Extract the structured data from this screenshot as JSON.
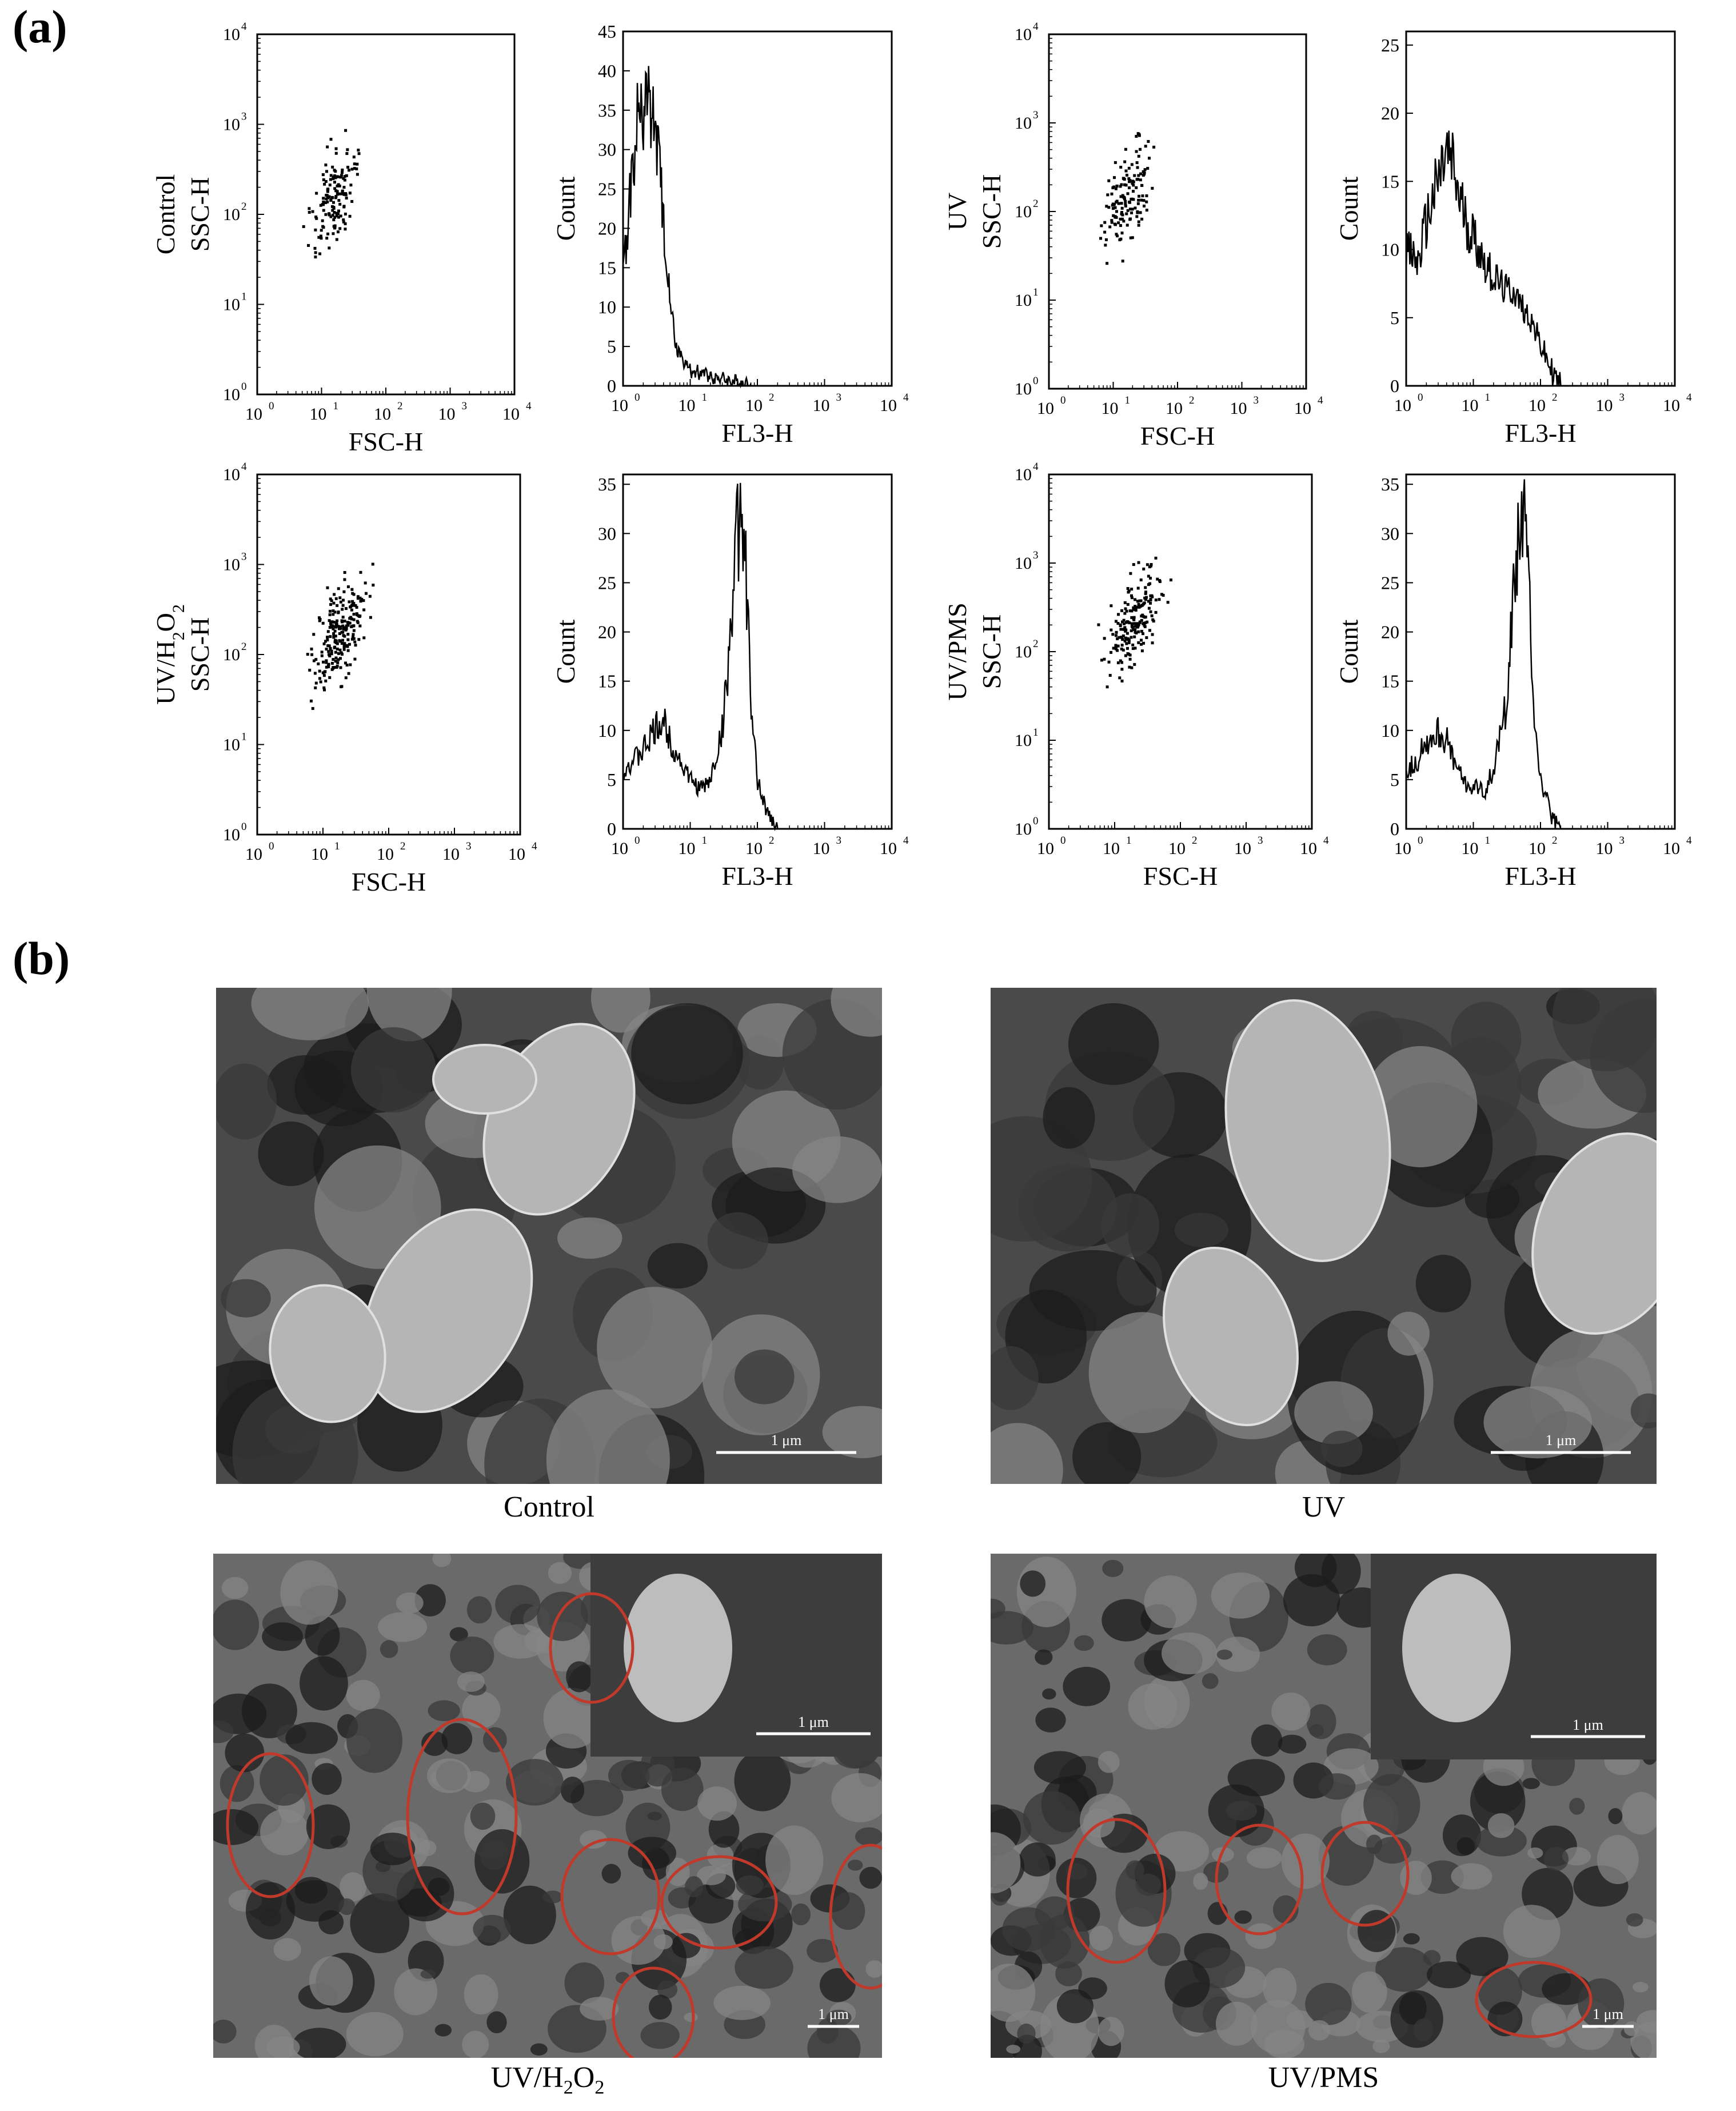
{
  "panel_a_label": "(a)",
  "panel_b_label": "(b)",
  "chart_data": [
    {
      "type": "scatter",
      "row_label": "Control",
      "xlabel": "FSC-H",
      "ylabel": "SSC-H",
      "xlog": true,
      "ylog": true,
      "xlim": [
        1,
        10000
      ],
      "ylim": [
        1,
        10000
      ],
      "tick_labels": [
        "10",
        "10",
        "10",
        "10",
        "10"
      ],
      "tick_exps": [
        "0",
        "1",
        "2",
        "3",
        "4"
      ],
      "cloud": {
        "n": 150,
        "x_center": 16,
        "x_spread": 0.25,
        "y_center": 150,
        "y_spread": 0.35,
        "slope": 0.8
      }
    },
    {
      "type": "line",
      "row_label": "",
      "xlabel": "FL3-H",
      "ylabel": "Count",
      "xlog": true,
      "xlim": [
        1,
        10000
      ],
      "ylim": [
        0,
        45
      ],
      "y_ticks": [
        0,
        5,
        10,
        15,
        20,
        25,
        30,
        35,
        40,
        45
      ],
      "tick_labels": [
        "10",
        "10",
        "10",
        "10",
        "10"
      ],
      "tick_exps": [
        "0",
        "1",
        "2",
        "3",
        "4"
      ],
      "x": [
        1.0,
        1.3,
        1.6,
        2.0,
        2.5,
        3.0,
        3.5,
        4.0,
        5.0,
        6.0,
        8.0,
        10,
        15,
        25,
        40,
        60,
        80
      ],
      "y": [
        14,
        25,
        33,
        35,
        36,
        32,
        27,
        20,
        12,
        5,
        3,
        2,
        1.5,
        1,
        0.5,
        0.3,
        0
      ]
    },
    {
      "type": "scatter",
      "row_label": "UV",
      "xlabel": "FSC-H",
      "ylabel": "SSC-H",
      "xlog": true,
      "ylog": true,
      "xlim": [
        1,
        10000
      ],
      "ylim": [
        1,
        10000
      ],
      "tick_labels": [
        "10",
        "10",
        "10",
        "10",
        "10"
      ],
      "tick_exps": [
        "0",
        "1",
        "2",
        "3",
        "4"
      ],
      "cloud": {
        "n": 150,
        "x_center": 18,
        "x_spread": 0.28,
        "y_center": 160,
        "y_spread": 0.35,
        "slope": 0.8
      }
    },
    {
      "type": "line",
      "row_label": "",
      "xlabel": "FL3-H",
      "ylabel": "Count",
      "xlog": true,
      "xlim": [
        1,
        10000
      ],
      "ylim": [
        0,
        26
      ],
      "y_ticks": [
        0,
        5,
        10,
        15,
        20,
        25
      ],
      "tick_labels": [
        "10",
        "10",
        "10",
        "10",
        "10"
      ],
      "tick_exps": [
        "0",
        "1",
        "2",
        "3",
        "4"
      ],
      "x": [
        1.0,
        1.5,
        2.0,
        3.0,
        4.0,
        5.0,
        6.0,
        8.0,
        10,
        15,
        20,
        30,
        40,
        50,
        70,
        100,
        150,
        200
      ],
      "y": [
        10,
        9,
        12,
        15,
        17,
        16,
        14,
        12,
        11,
        9,
        8,
        7,
        7,
        6,
        5,
        3,
        1,
        0
      ]
    },
    {
      "type": "scatter",
      "row_label": "UV/H2O2",
      "xlabel": "FSC-H",
      "ylabel": "SSC-H",
      "xlog": true,
      "ylog": true,
      "xlim": [
        1,
        10000
      ],
      "ylim": [
        1,
        10000
      ],
      "tick_labels": [
        "10",
        "10",
        "10",
        "10",
        "10"
      ],
      "tick_exps": [
        "0",
        "1",
        "2",
        "3",
        "4"
      ],
      "cloud": {
        "n": 230,
        "x_center": 18,
        "x_spread": 0.3,
        "y_center": 180,
        "y_spread": 0.35,
        "slope": 0.8
      }
    },
    {
      "type": "line",
      "row_label": "",
      "xlabel": "FL3-H",
      "ylabel": "Count",
      "xlog": true,
      "xlim": [
        1,
        10000
      ],
      "ylim": [
        0,
        36
      ],
      "y_ticks": [
        0,
        5,
        10,
        15,
        20,
        25,
        30,
        35
      ],
      "tick_labels": [
        "10",
        "10",
        "10",
        "10",
        "10"
      ],
      "tick_exps": [
        "0",
        "1",
        "2",
        "3",
        "4"
      ],
      "x": [
        1.0,
        1.5,
        2.0,
        3.0,
        4.0,
        5.0,
        7.0,
        10,
        15,
        20,
        30,
        40,
        50,
        60,
        70,
        80,
        100,
        150,
        200
      ],
      "y": [
        6,
        7,
        8,
        10,
        11,
        9,
        7,
        5,
        4,
        5,
        10,
        20,
        30,
        31,
        24,
        12,
        5,
        1,
        0
      ]
    },
    {
      "type": "scatter",
      "row_label": "UV/PMS",
      "xlabel": "FSC-H",
      "ylabel": "SSC-H",
      "xlog": true,
      "ylog": true,
      "xlim": [
        1,
        10000
      ],
      "ylim": [
        1,
        10000
      ],
      "tick_labels": [
        "10",
        "10",
        "10",
        "10",
        "10"
      ],
      "tick_exps": [
        "0",
        "1",
        "2",
        "3",
        "4"
      ],
      "cloud": {
        "n": 200,
        "x_center": 20,
        "x_spread": 0.3,
        "y_center": 220,
        "y_spread": 0.33,
        "slope": 0.8
      }
    },
    {
      "type": "line",
      "row_label": "",
      "xlabel": "FL3-H",
      "ylabel": "Count",
      "xlog": true,
      "xlim": [
        1,
        10000
      ],
      "ylim": [
        0,
        36
      ],
      "y_ticks": [
        0,
        5,
        10,
        15,
        20,
        25,
        30,
        35
      ],
      "tick_labels": [
        "10",
        "10",
        "10",
        "10",
        "10"
      ],
      "tick_exps": [
        "0",
        "1",
        "2",
        "3",
        "4"
      ],
      "x": [
        1.0,
        1.5,
        2.0,
        3.0,
        4.0,
        5.0,
        7.0,
        10,
        15,
        20,
        30,
        40,
        50,
        60,
        70,
        80,
        100,
        150,
        200
      ],
      "y": [
        6,
        7,
        9,
        10,
        9,
        7,
        5,
        4,
        4,
        6,
        12,
        24,
        32,
        30,
        22,
        12,
        5,
        1,
        0
      ]
    }
  ],
  "sem_panels": [
    {
      "caption": "Control",
      "scale_bar": "1 μm",
      "has_inset": false,
      "inset_scale": "",
      "circles": 0
    },
    {
      "caption": "UV",
      "scale_bar": "1 μm",
      "has_inset": false,
      "inset_scale": "",
      "circles": 0
    },
    {
      "caption": "UV/H2O2",
      "scale_bar": "1 μm",
      "has_inset": true,
      "inset_scale": "1 μm",
      "circles": 8
    },
    {
      "caption": "UV/PMS",
      "scale_bar": "1 μm",
      "has_inset": true,
      "inset_scale": "1 μm",
      "circles": 4
    }
  ]
}
